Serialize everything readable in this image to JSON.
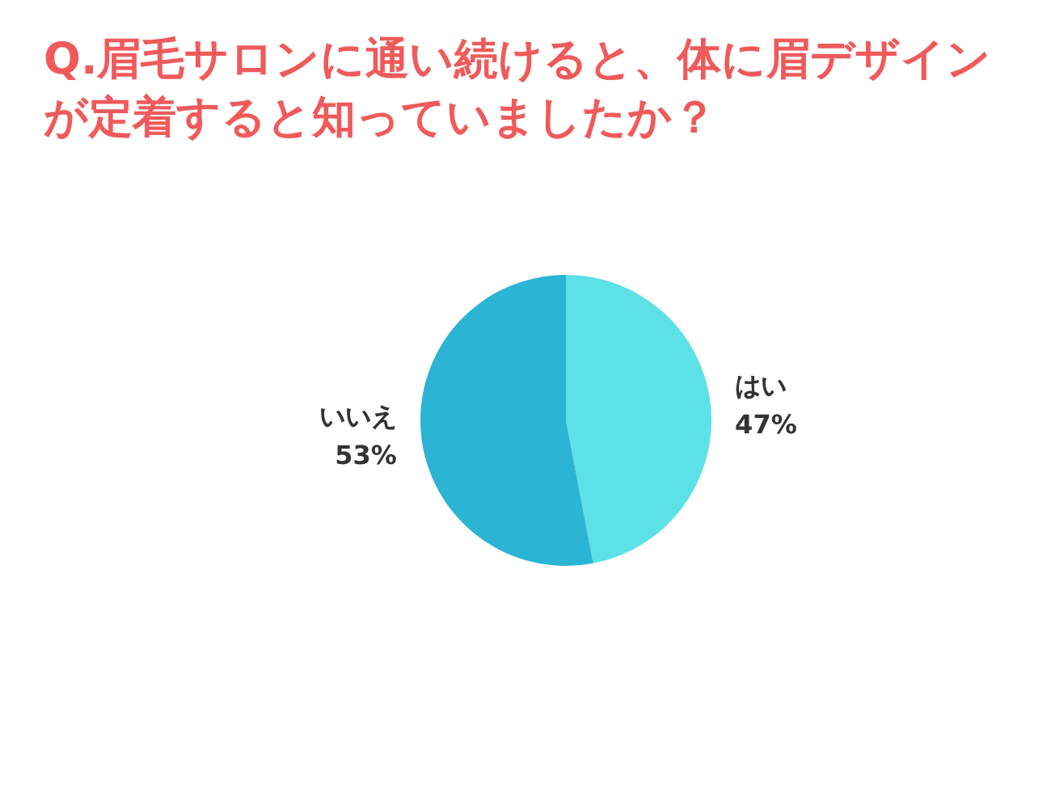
{
  "chart_data": {
    "type": "pie",
    "title": "Q.眉毛サロンに通い続けると、体に眉デザインが定着すると知っていましたか？",
    "categories": [
      "はい",
      "いいえ"
    ],
    "values": [
      47,
      53
    ],
    "colors": [
      "#5ce1e6",
      "#2cb4d4"
    ],
    "value_labels": [
      "47%",
      "53%"
    ]
  }
}
